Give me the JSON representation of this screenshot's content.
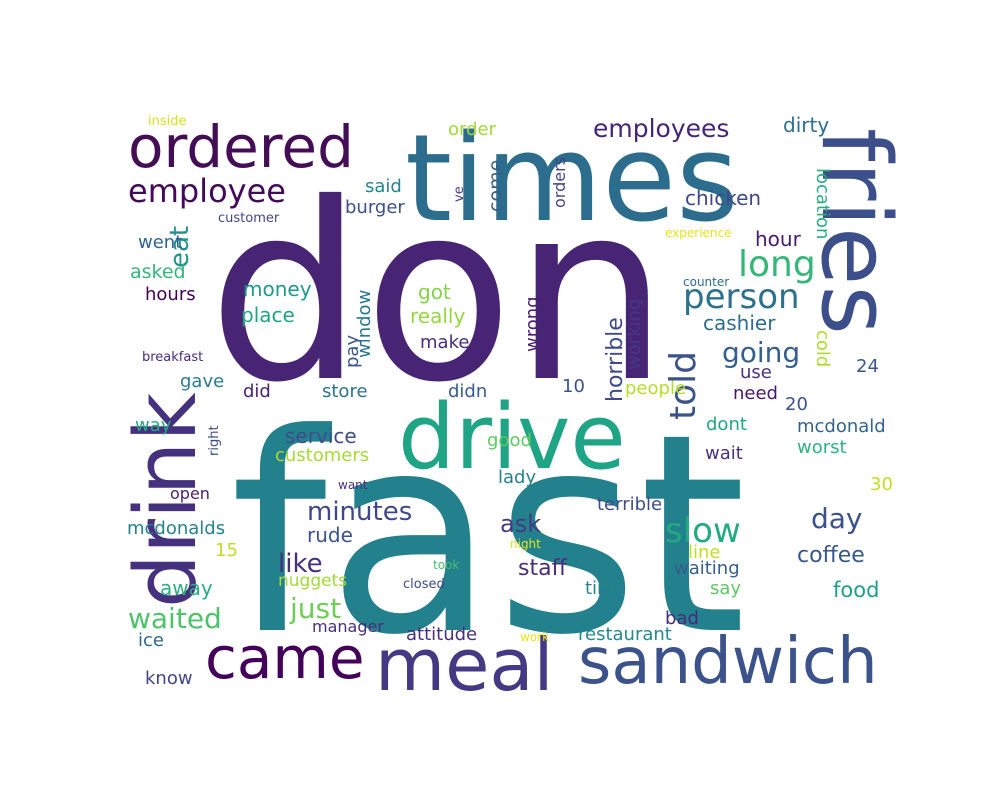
{
  "word_cloud": {
    "words": [
      {
        "text": "fast",
        "color": "#23808d"
      },
      {
        "text": "don",
        "color": "#482475"
      },
      {
        "text": "times",
        "color": "#2c6d8e"
      },
      {
        "text": "drive",
        "color": "#20a486"
      },
      {
        "text": "fries",
        "color": "#3d4f8a"
      },
      {
        "text": "drink",
        "color": "#46317e"
      },
      {
        "text": "meal",
        "color": "#443982"
      },
      {
        "text": "sandwich",
        "color": "#3b528b"
      },
      {
        "text": "came",
        "color": "#44015a"
      },
      {
        "text": "ordered",
        "color": "#440e57"
      },
      {
        "text": "employee",
        "color": "#440a59"
      },
      {
        "text": "employees",
        "color": "#46247a"
      },
      {
        "text": "person",
        "color": "#2d718e"
      },
      {
        "text": "long",
        "color": "#35b779"
      },
      {
        "text": "slow",
        "color": "#24aa83"
      },
      {
        "text": "told",
        "color": "#3b528b"
      },
      {
        "text": "going",
        "color": "#355f8d"
      },
      {
        "text": "minutes",
        "color": "#3f4788"
      },
      {
        "text": "day",
        "color": "#3b528b"
      },
      {
        "text": "waited",
        "color": "#4ec36b"
      },
      {
        "text": "just",
        "color": "#6ece58"
      },
      {
        "text": "like",
        "color": "#46307e"
      },
      {
        "text": "ask",
        "color": "#443a83"
      },
      {
        "text": "staff",
        "color": "#472d7b"
      },
      {
        "text": "coffee",
        "color": "#38588c"
      },
      {
        "text": "food",
        "color": "#1f9e89"
      },
      {
        "text": "eat",
        "color": "#21918c"
      },
      {
        "text": "horrible",
        "color": "#3e4a89"
      },
      {
        "text": "window",
        "color": "#2a788e"
      },
      {
        "text": "wrong",
        "color": "#482071"
      },
      {
        "text": "come",
        "color": "#355f8d"
      },
      {
        "text": "orders",
        "color": "#414487"
      },
      {
        "text": "chicken",
        "color": "#3f4889"
      },
      {
        "text": "hour",
        "color": "#481b6d"
      },
      {
        "text": "dirty",
        "color": "#2e6e8e"
      },
      {
        "text": "order",
        "color": "#a0da39"
      },
      {
        "text": "said",
        "color": "#25848e"
      },
      {
        "text": "burger",
        "color": "#3d4e8a"
      },
      {
        "text": "went",
        "color": "#33638d"
      },
      {
        "text": "asked",
        "color": "#34b679"
      },
      {
        "text": "hours",
        "color": "#440154"
      },
      {
        "text": "money",
        "color": "#1f998a"
      },
      {
        "text": "place",
        "color": "#20a486"
      },
      {
        "text": "got",
        "color": "#84d44b"
      },
      {
        "text": "really",
        "color": "#95d840"
      },
      {
        "text": "make",
        "color": "#472d7b"
      },
      {
        "text": "pay",
        "color": "#3a548c"
      },
      {
        "text": "cashier",
        "color": "#2f6c8e"
      },
      {
        "text": "working",
        "color": "#453882"
      },
      {
        "text": "location",
        "color": "#29af7f"
      },
      {
        "text": "cold",
        "color": "#addc30"
      },
      {
        "text": "24",
        "color": "#39568c"
      },
      {
        "text": "use",
        "color": "#46317e"
      },
      {
        "text": "need",
        "color": "#481769"
      },
      {
        "text": "20",
        "color": "#3b528b"
      },
      {
        "text": "gave",
        "color": "#287c8e"
      },
      {
        "text": "did",
        "color": "#481f70"
      },
      {
        "text": "store",
        "color": "#2d708e"
      },
      {
        "text": "didn",
        "color": "#365c8d"
      },
      {
        "text": "10",
        "color": "#3b528b"
      },
      {
        "text": "people",
        "color": "#b5de2b"
      },
      {
        "text": "service",
        "color": "#3d4e8a"
      },
      {
        "text": "customers",
        "color": "#a5db36"
      },
      {
        "text": "good",
        "color": "#5ec962"
      },
      {
        "text": "dont",
        "color": "#22a785"
      },
      {
        "text": "wait",
        "color": "#46337f"
      },
      {
        "text": "mcdonald",
        "color": "#33638d"
      },
      {
        "text": "worst",
        "color": "#2db27d"
      },
      {
        "text": "way",
        "color": "#22a884"
      },
      {
        "text": "lady",
        "color": "#26828e"
      },
      {
        "text": "open",
        "color": "#482071"
      },
      {
        "text": "terrible",
        "color": "#3e4c8a"
      },
      {
        "text": "30",
        "color": "#c2df23"
      },
      {
        "text": "rude",
        "color": "#3b528b"
      },
      {
        "text": "mcdonalds",
        "color": "#26828e"
      },
      {
        "text": "15",
        "color": "#bddf26"
      },
      {
        "text": "line",
        "color": "#c0df25"
      },
      {
        "text": "waiting",
        "color": "#365d8d"
      },
      {
        "text": "away",
        "color": "#29af7f"
      },
      {
        "text": "nuggets",
        "color": "#a2da37"
      },
      {
        "text": "time",
        "color": "#25848e"
      },
      {
        "text": "say",
        "color": "#5ec962"
      },
      {
        "text": "bad",
        "color": "#472a7a"
      },
      {
        "text": "ice",
        "color": "#31668e"
      },
      {
        "text": "manager",
        "color": "#46307e"
      },
      {
        "text": "attitude",
        "color": "#46317e"
      },
      {
        "text": "restaurant",
        "color": "#23898e"
      },
      {
        "text": "know",
        "color": "#3f4788"
      },
      {
        "text": "inside",
        "color": "#d8e219"
      },
      {
        "text": "customer",
        "color": "#404688"
      },
      {
        "text": "ve",
        "color": "#443b84"
      },
      {
        "text": "experience",
        "color": "#e5e419"
      },
      {
        "text": "counter",
        "color": "#2f6b8e"
      },
      {
        "text": "breakfast",
        "color": "#472c7a"
      },
      {
        "text": "right",
        "color": "#3c4f8a"
      },
      {
        "text": "want",
        "color": "#472f7d"
      },
      {
        "text": "night",
        "color": "#e2e418"
      },
      {
        "text": "took",
        "color": "#44bf70"
      },
      {
        "text": "closed",
        "color": "#3e4989"
      },
      {
        "text": "work",
        "color": "#e7e419"
      }
    ]
  }
}
